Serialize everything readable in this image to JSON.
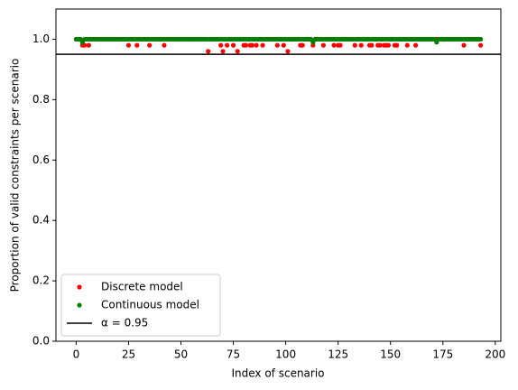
{
  "chart_data": {
    "type": "scatter",
    "x_label": "Index of scenario",
    "y_label": "Proportion of valid constraints per scenario",
    "x": [
      0,
      1,
      2,
      3,
      4,
      5,
      6,
      7,
      8,
      9,
      10,
      11,
      12,
      13,
      14,
      15,
      16,
      17,
      18,
      19,
      20,
      21,
      22,
      23,
      24,
      25,
      26,
      27,
      28,
      29,
      30,
      31,
      32,
      33,
      34,
      35,
      36,
      37,
      38,
      39,
      40,
      41,
      42,
      43,
      44,
      45,
      46,
      47,
      48,
      49,
      50,
      51,
      52,
      53,
      54,
      55,
      56,
      57,
      58,
      59,
      60,
      61,
      62,
      63,
      64,
      65,
      66,
      67,
      68,
      69,
      70,
      71,
      72,
      73,
      74,
      75,
      76,
      77,
      78,
      79,
      80,
      81,
      82,
      83,
      84,
      85,
      86,
      87,
      88,
      89,
      90,
      91,
      92,
      93,
      94,
      95,
      96,
      97,
      98,
      99,
      100,
      101,
      102,
      103,
      104,
      105,
      106,
      107,
      108,
      109,
      110,
      111,
      112,
      113,
      114,
      115,
      116,
      117,
      118,
      119,
      120,
      121,
      122,
      123,
      124,
      125,
      126,
      127,
      128,
      129,
      130,
      131,
      132,
      133,
      134,
      135,
      136,
      137,
      138,
      139,
      140,
      141,
      142,
      143,
      144,
      145,
      146,
      147,
      148,
      149,
      150,
      151,
      152,
      153,
      154,
      155,
      156,
      157,
      158,
      159,
      160,
      161,
      162,
      163,
      164,
      165,
      166,
      167,
      168,
      169,
      170,
      171,
      172,
      173,
      174,
      175,
      176,
      177,
      178,
      179,
      180,
      181,
      182,
      183,
      184,
      185,
      186,
      187,
      188,
      189,
      190,
      191,
      192,
      193
    ],
    "series": [
      {
        "name": "Discrete model",
        "color": "#ff0000",
        "values": [
          1,
          1,
          1,
          0.98,
          0.98,
          1,
          0.98,
          1,
          1,
          1,
          1,
          1,
          1,
          1,
          1,
          1,
          1,
          1,
          1,
          1,
          1,
          1,
          1,
          1,
          1,
          0.98,
          1,
          1,
          1,
          0.98,
          1,
          1,
          1,
          1,
          1,
          0.98,
          1,
          1,
          1,
          1,
          1,
          1,
          0.98,
          1,
          1,
          1,
          1,
          1,
          1,
          1,
          1,
          1,
          1,
          1,
          1,
          1,
          1,
          1,
          1,
          1,
          1,
          1,
          1,
          0.96,
          1,
          1,
          1,
          1,
          1,
          0.98,
          0.96,
          1,
          0.98,
          1,
          1,
          0.98,
          1,
          0.96,
          1,
          1,
          0.98,
          0.98,
          1,
          0.98,
          0.98,
          1,
          0.98,
          1,
          1,
          0.98,
          1,
          1,
          1,
          1,
          1,
          1,
          0.98,
          1,
          1,
          0.98,
          1,
          0.96,
          1,
          1,
          1,
          1,
          1,
          0.98,
          0.98,
          1,
          1,
          1,
          1,
          0.98,
          1,
          1,
          1,
          1,
          0.98,
          1,
          1,
          1,
          1,
          0.98,
          1,
          0.98,
          0.98,
          1,
          1,
          1,
          1,
          1,
          1,
          0.98,
          1,
          1,
          0.98,
          1,
          1,
          1,
          0.98,
          0.98,
          1,
          1,
          0.98,
          0.98,
          1,
          0.98,
          0.98,
          0.98,
          1,
          1,
          0.98,
          0.98,
          1,
          1,
          1,
          1,
          0.98,
          1,
          1,
          1,
          0.98,
          1,
          1,
          1,
          1,
          1,
          1,
          1,
          1,
          1,
          1,
          1,
          1,
          1,
          1,
          1,
          1,
          1,
          1,
          1,
          1,
          1,
          1,
          0.98,
          1,
          1,
          1,
          1,
          1,
          1,
          1,
          0.98
        ]
      },
      {
        "name": "Continuous model",
        "color": "#008000",
        "values": [
          1,
          1,
          1,
          0.99,
          1,
          1,
          1,
          1,
          1,
          1,
          1,
          1,
          1,
          1,
          1,
          1,
          1,
          1,
          1,
          1,
          1,
          1,
          1,
          1,
          1,
          1,
          1,
          1,
          1,
          1,
          1,
          1,
          1,
          1,
          1,
          1,
          1,
          1,
          1,
          1,
          1,
          1,
          1,
          1,
          1,
          1,
          1,
          1,
          1,
          1,
          1,
          1,
          1,
          1,
          1,
          1,
          1,
          1,
          1,
          1,
          1,
          1,
          1,
          1,
          1,
          1,
          1,
          1,
          1,
          1,
          1,
          1,
          1,
          1,
          1,
          1,
          1,
          1,
          1,
          1,
          1,
          1,
          1,
          1,
          1,
          1,
          1,
          1,
          1,
          1,
          1,
          1,
          1,
          1,
          1,
          1,
          1,
          1,
          1,
          1,
          1,
          1,
          1,
          1,
          1,
          1,
          1,
          1,
          1,
          1,
          1,
          1,
          1,
          0.99,
          1,
          1,
          1,
          1,
          1,
          1,
          1,
          1,
          1,
          1,
          1,
          1,
          1,
          1,
          1,
          1,
          1,
          1,
          1,
          1,
          1,
          1,
          1,
          1,
          1,
          1,
          1,
          1,
          1,
          1,
          1,
          1,
          1,
          1,
          1,
          1,
          1,
          1,
          1,
          1,
          1,
          1,
          1,
          1,
          1,
          1,
          1,
          1,
          1,
          1,
          1,
          1,
          1,
          1,
          1,
          1,
          1,
          1,
          0.99,
          1,
          1,
          1,
          1,
          1,
          1,
          1,
          1,
          1,
          1,
          1,
          1,
          1,
          1,
          1,
          1,
          1,
          1,
          1,
          1,
          1
        ]
      }
    ],
    "hline": {
      "value": 0.95,
      "label": "α = 0.95",
      "color": "#000000"
    },
    "xlim": [
      -9.65,
      202.65
    ],
    "ylim": [
      0,
      1.1
    ],
    "xticks": [
      0,
      25,
      50,
      75,
      100,
      125,
      150,
      175,
      200
    ],
    "yticks": [
      {
        "value": 0,
        "label": "0.0"
      },
      0.2,
      0.4,
      0.6,
      0.8,
      {
        "value": 1,
        "label": "1.0"
      }
    ],
    "legend": "lower left"
  }
}
